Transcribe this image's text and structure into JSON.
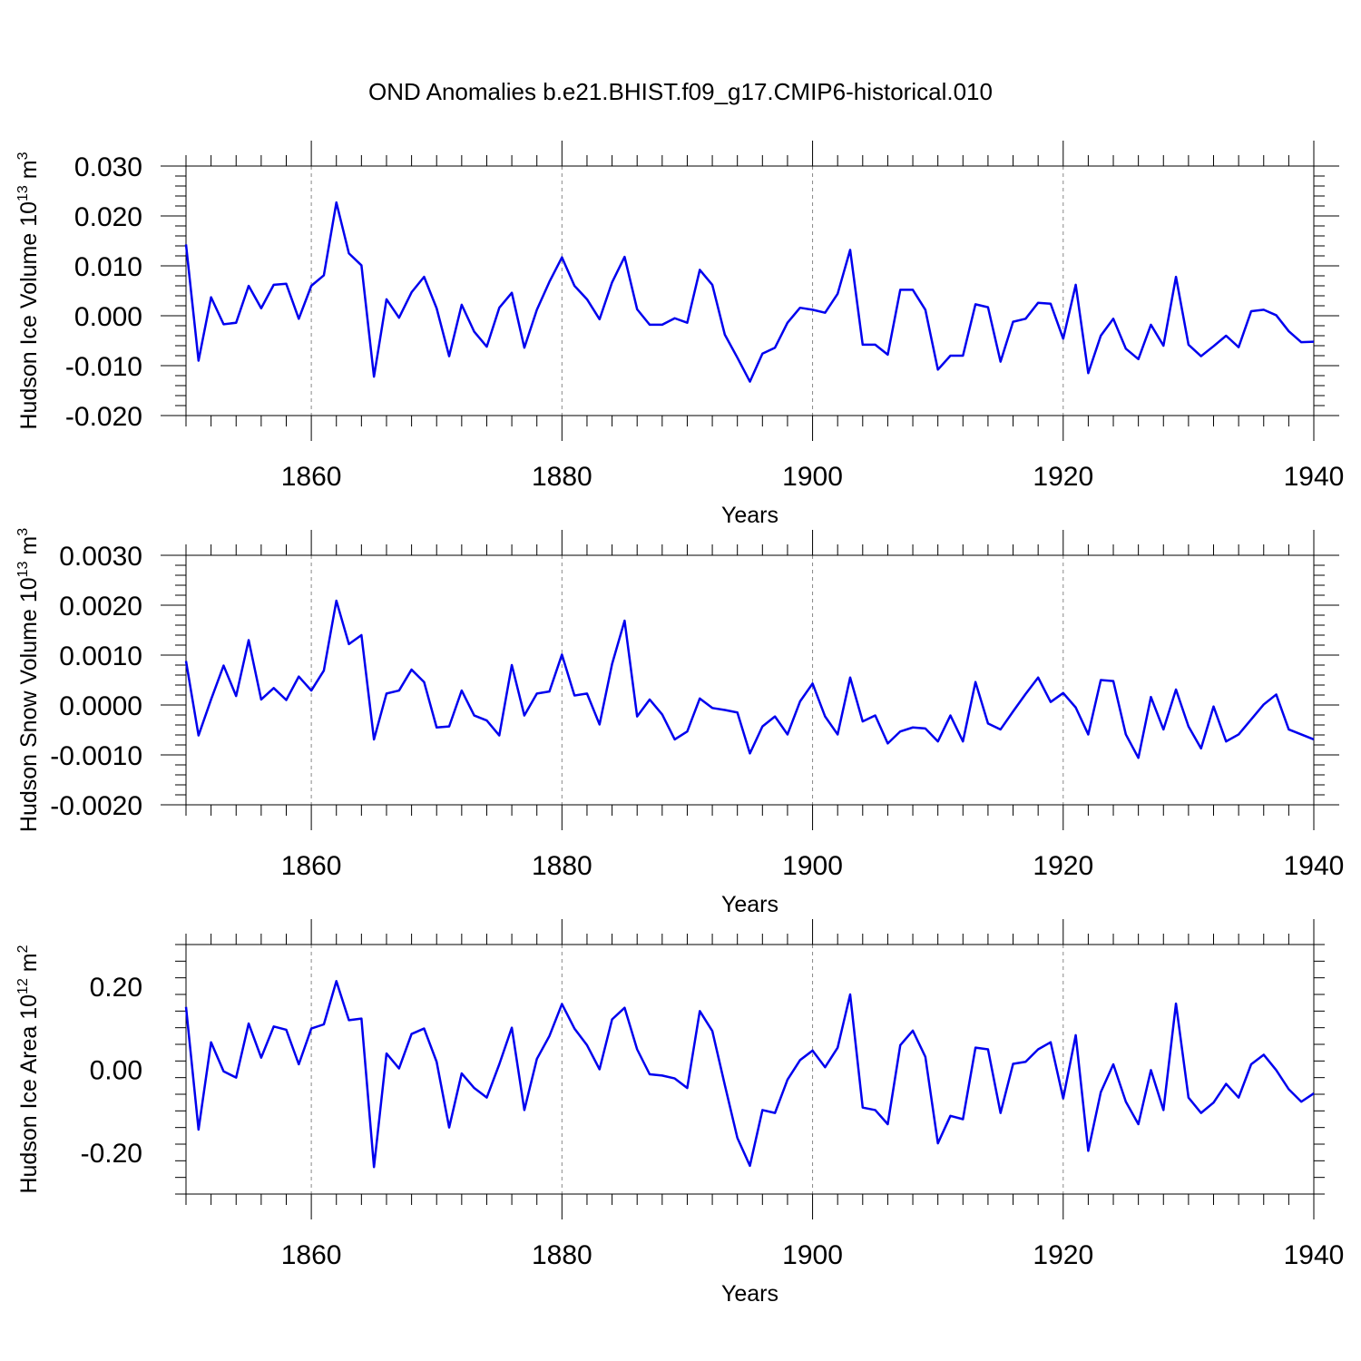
{
  "title": "OND Anomalies b.e21.BHIST.f09_g17.CMIP6-historical.010",
  "chart_data": [
    {
      "type": "line",
      "name": "ice-volume",
      "title": "",
      "xlabel": "Years",
      "ylabel": "Hudson Ice Volume 10",
      "ylabel_exp": "13",
      "ylabel_unit": "m",
      "ylabel_unit_exp": "3",
      "xlim": [
        1850,
        1940
      ],
      "ylim": [
        -0.02,
        0.03
      ],
      "xticks": [
        1860,
        1880,
        1900,
        1920,
        1940
      ],
      "xtick_labels": [
        "1860",
        "1880",
        "1900",
        "1920",
        "1940"
      ],
      "yticks": [
        -0.02,
        -0.01,
        0.0,
        0.01,
        0.02,
        0.03
      ],
      "ytick_labels": [
        "-0.020",
        "-0.010",
        "0.000",
        "0.010",
        "0.020",
        "0.030"
      ],
      "grid": "vertical-dashed",
      "color": "#0000ee",
      "x_start": 1850,
      "x_step": 1,
      "values": [
        0.0143,
        -0.009,
        0.0037,
        -0.0017,
        -0.0014,
        0.006,
        0.0015,
        0.0062,
        0.0064,
        -0.0006,
        0.006,
        0.0081,
        0.0227,
        0.0125,
        0.0101,
        -0.0122,
        0.0033,
        -0.0004,
        0.0047,
        0.0078,
        0.0015,
        -0.0081,
        0.0022,
        -0.0032,
        -0.0062,
        0.0016,
        0.0046,
        -0.0064,
        0.0012,
        0.0068,
        0.0117,
        0.006,
        0.0033,
        -0.0007,
        0.0067,
        0.0118,
        0.0013,
        -0.0018,
        -0.0018,
        -0.0005,
        -0.0014,
        0.0092,
        0.0062,
        -0.0038,
        -0.0084,
        -0.0132,
        -0.0076,
        -0.0064,
        -0.0014,
        0.0016,
        0.0012,
        0.0006,
        0.0044,
        0.0132,
        -0.0058,
        -0.0058,
        -0.0078,
        0.0052,
        0.0052,
        0.0012,
        -0.0108,
        -0.008,
        -0.008,
        0.0023,
        0.0017,
        -0.0092,
        -0.0012,
        -0.0006,
        0.0026,
        0.0024,
        -0.0046,
        0.0062,
        -0.0115,
        -0.004,
        -0.0006,
        -0.0066,
        -0.0087,
        -0.0018,
        -0.006,
        0.0078,
        -0.0058,
        -0.0081,
        -0.0061,
        -0.004,
        -0.0063,
        0.0009,
        0.0012,
        0.0001,
        -0.0031,
        -0.0053,
        -0.0052
      ]
    },
    {
      "type": "line",
      "name": "snow-volume",
      "title": "",
      "xlabel": "Years",
      "ylabel": "Hudson Snow Volume 10",
      "ylabel_exp": "13",
      "ylabel_unit": "m",
      "ylabel_unit_exp": "3",
      "xlim": [
        1850,
        1940
      ],
      "ylim": [
        -0.002,
        0.003
      ],
      "xticks": [
        1860,
        1880,
        1900,
        1920,
        1940
      ],
      "xtick_labels": [
        "1860",
        "1880",
        "1900",
        "1920",
        "1940"
      ],
      "yticks": [
        -0.002,
        -0.001,
        0.0,
        0.001,
        0.002,
        0.003
      ],
      "ytick_labels": [
        "-0.0020",
        "-0.0010",
        "0.0000",
        "0.0010",
        "0.0020",
        "0.0030"
      ],
      "grid": "vertical-dashed",
      "color": "#0000ee",
      "x_start": 1850,
      "x_step": 1,
      "values": [
        0.00088,
        -0.00061,
        0.00011,
        0.00079,
        0.00018,
        0.0013,
        0.00011,
        0.00034,
        0.0001,
        0.00057,
        0.00029,
        0.00069,
        0.00209,
        0.00122,
        0.0014,
        -0.00069,
        0.00023,
        0.00029,
        0.00071,
        0.00046,
        -0.00045,
        -0.00043,
        0.00029,
        -0.00021,
        -0.00031,
        -0.00061,
        0.0008,
        -0.00021,
        0.00023,
        0.00027,
        0.00101,
        0.00019,
        0.00023,
        -0.00039,
        0.00082,
        0.00169,
        -0.00023,
        0.00011,
        -0.00019,
        -0.00069,
        -0.00053,
        0.00013,
        -6e-05,
        -0.0001,
        -0.00015,
        -0.00097,
        -0.00043,
        -0.00023,
        -0.00059,
        7e-05,
        0.00043,
        -0.00023,
        -0.00059,
        0.00055,
        -0.00033,
        -0.00021,
        -0.00077,
        -0.00053,
        -0.00045,
        -0.00047,
        -0.00073,
        -0.00021,
        -0.00073,
        0.00046,
        -0.00037,
        -0.00049,
        -0.00013,
        0.00022,
        0.00055,
        6e-05,
        0.00024,
        -5e-05,
        -0.00059,
        0.0005,
        0.00048,
        -0.00059,
        -0.00106,
        0.00016,
        -0.00049,
        0.00031,
        -0.00043,
        -0.00087,
        -3e-05,
        -0.00073,
        -0.00059,
        -0.00029,
        1e-05,
        0.00021,
        -0.00049,
        -0.00059,
        -0.00069
      ]
    },
    {
      "type": "line",
      "name": "ice-area",
      "title": "",
      "xlabel": "Years",
      "ylabel": "Hudson Ice Area 10",
      "ylabel_exp": "12",
      "ylabel_unit": "m",
      "ylabel_unit_exp": "2",
      "xlim": [
        1850,
        1940
      ],
      "ylim": [
        -0.3,
        0.3
      ],
      "xticks": [
        1860,
        1880,
        1900,
        1920,
        1940
      ],
      "xtick_labels": [
        "1860",
        "1880",
        "1900",
        "1920",
        "1940"
      ],
      "yticks": [
        -0.2,
        0.0,
        0.2
      ],
      "ytick_labels": [
        "-0.20",
        "0.00",
        "0.20"
      ],
      "grid": "vertical-dashed",
      "color": "#0000ee",
      "x_start": 1850,
      "x_step": 1,
      "values": [
        0.15,
        -0.145,
        0.065,
        -0.005,
        -0.02,
        0.11,
        0.028,
        0.103,
        0.095,
        0.012,
        0.098,
        0.108,
        0.212,
        0.118,
        0.122,
        -0.235,
        0.038,
        0.002,
        0.085,
        0.098,
        0.018,
        -0.14,
        -0.01,
        -0.045,
        -0.068,
        0.012,
        0.1,
        -0.098,
        0.025,
        0.08,
        0.157,
        0.098,
        0.058,
        0.0,
        0.12,
        0.148,
        0.048,
        -0.012,
        -0.015,
        -0.022,
        -0.045,
        0.14,
        0.092,
        -0.038,
        -0.165,
        -0.232,
        -0.098,
        -0.105,
        -0.025,
        0.022,
        0.045,
        0.005,
        0.052,
        0.18,
        -0.092,
        -0.098,
        -0.132,
        0.058,
        0.093,
        0.03,
        -0.178,
        -0.112,
        -0.12,
        0.052,
        0.048,
        -0.105,
        0.013,
        0.018,
        0.048,
        0.065,
        -0.07,
        0.082,
        -0.196,
        -0.055,
        0.012,
        -0.078,
        -0.132,
        -0.002,
        -0.098,
        0.158,
        -0.068,
        -0.105,
        -0.08,
        -0.035,
        -0.068,
        0.012,
        0.035,
        -0.002,
        -0.048,
        -0.078,
        -0.058
      ]
    }
  ]
}
